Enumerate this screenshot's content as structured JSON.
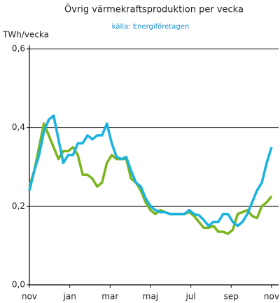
{
  "chart_data": {
    "type": "line",
    "title": "Övrig värmekraftsproduktion per vecka",
    "subtitle": "källa: Energiföretagen",
    "y_label": "TWh/vecka",
    "x": [
      0,
      0.24,
      0.48,
      0.72,
      0.96,
      1.2,
      1.44,
      1.68,
      1.92,
      2.16,
      2.4,
      2.64,
      2.88,
      3.12,
      3.36,
      3.6,
      3.84,
      4.08,
      4.32,
      4.56,
      4.8,
      5.04,
      5.28,
      5.52,
      5.76,
      6,
      6.24,
      6.48,
      6.72,
      6.96,
      7.2,
      7.44,
      7.68,
      7.92,
      8.16,
      8.4,
      8.64,
      8.88,
      9.12,
      9.36,
      9.6,
      9.84,
      10.08,
      10.32,
      10.56,
      10.8,
      11.04,
      11.28,
      11.52,
      11.76,
      12
    ],
    "series": [
      {
        "color": "#7ab51d",
        "values": [
          0.25,
          0.29,
          0.35,
          0.41,
          0.38,
          0.35,
          0.32,
          0.34,
          0.34,
          0.35,
          0.33,
          0.28,
          0.28,
          0.27,
          0.25,
          0.26,
          0.31,
          0.33,
          0.32,
          0.32,
          0.32,
          0.27,
          0.26,
          0.24,
          0.21,
          0.19,
          0.18,
          0.19,
          0.185,
          0.18,
          0.18,
          0.18,
          0.18,
          0.185,
          0.175,
          0.16,
          0.145,
          0.145,
          0.15,
          0.135,
          0.135,
          0.13,
          0.14,
          0.18,
          0.185,
          0.19,
          0.175,
          0.17,
          0.2,
          0.21,
          0.225
        ]
      },
      {
        "color": "#1ab2e0",
        "values": [
          0.24,
          0.29,
          0.33,
          0.39,
          0.42,
          0.43,
          0.37,
          0.31,
          0.33,
          0.33,
          0.36,
          0.36,
          0.38,
          0.37,
          0.38,
          0.38,
          0.41,
          0.36,
          0.325,
          0.32,
          0.325,
          0.29,
          0.26,
          0.25,
          0.22,
          0.2,
          0.19,
          0.185,
          0.185,
          0.18,
          0.18,
          0.18,
          0.18,
          0.19,
          0.18,
          0.177,
          0.165,
          0.15,
          0.16,
          0.16,
          0.18,
          0.18,
          0.16,
          0.15,
          0.16,
          0.18,
          0.21,
          0.24,
          0.26,
          0.31,
          0.35
        ]
      }
    ],
    "xlim": [
      0,
      12.35
    ],
    "xticks": [
      {
        "value": 0,
        "label": "nov"
      },
      {
        "value": 2,
        "label": "jan"
      },
      {
        "value": 4,
        "label": "mar"
      },
      {
        "value": 6,
        "label": "maj"
      },
      {
        "value": 8,
        "label": "jul"
      },
      {
        "value": 10,
        "label": "sep"
      },
      {
        "value": 12,
        "label": "nov"
      }
    ],
    "ylim": [
      0,
      0.6
    ],
    "yticks": [
      {
        "value": 0,
        "label": "0,0"
      },
      {
        "value": 0.2,
        "label": "0,2"
      },
      {
        "value": 0.4,
        "label": "0,4"
      },
      {
        "value": 0.6,
        "label": "0,6"
      }
    ],
    "grid": true
  }
}
